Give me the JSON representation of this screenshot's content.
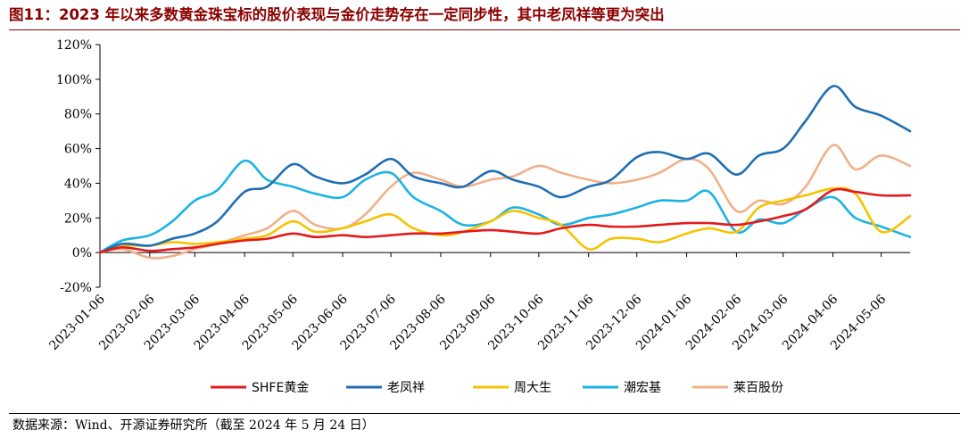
{
  "figure": {
    "title": "图11：2023 年以来多数黄金珠宝标的股价表现与金价走势存在一定同步性，其中老凤祥等更为突出",
    "source": "数据来源：Wind、开源证券研究所（截至 2024 年 5 月 24 日）"
  },
  "chart_data": {
    "type": "line",
    "title": "",
    "xlabel": "",
    "ylabel": "",
    "ylim": [
      -20,
      120
    ],
    "y_ticks": [
      -20,
      0,
      20,
      40,
      60,
      80,
      100,
      120
    ],
    "y_tick_labels": [
      "-20%",
      "0%",
      "20%",
      "40%",
      "60%",
      "80%",
      "100%",
      "120%"
    ],
    "x_tick_labels": [
      "2023-01-06",
      "2023-02-06",
      "2023-03-06",
      "2023-04-06",
      "2023-05-06",
      "2023-06-06",
      "2023-07-06",
      "2023-08-06",
      "2023-09-06",
      "2023-10-06",
      "2023-11-06",
      "2023-12-06",
      "2024-01-06",
      "2024-02-06",
      "2024-03-06",
      "2024-04-06",
      "2024-05-06"
    ],
    "x": [
      "2023-01-06",
      "2023-01-20",
      "2023-02-06",
      "2023-02-20",
      "2023-03-06",
      "2023-03-20",
      "2023-04-06",
      "2023-04-20",
      "2023-05-06",
      "2023-05-20",
      "2023-06-06",
      "2023-06-20",
      "2023-07-06",
      "2023-07-20",
      "2023-08-06",
      "2023-08-20",
      "2023-09-06",
      "2023-09-20",
      "2023-10-06",
      "2023-10-20",
      "2023-11-06",
      "2023-11-20",
      "2023-12-06",
      "2023-12-20",
      "2024-01-06",
      "2024-01-20",
      "2024-02-06",
      "2024-02-20",
      "2024-03-06",
      "2024-03-20",
      "2024-04-06",
      "2024-04-20",
      "2024-05-06",
      "2024-05-24"
    ],
    "legend_position": "bottom",
    "grid": false,
    "series": [
      {
        "name": "SHFE黄金",
        "color": "#e31a1c",
        "values": [
          0,
          3,
          1,
          2,
          3,
          5,
          7,
          8,
          11,
          9,
          10,
          9,
          10,
          11,
          11,
          12,
          13,
          12,
          11,
          14,
          16,
          15,
          15,
          16,
          17,
          17,
          16,
          18,
          21,
          25,
          36,
          35,
          33,
          33
        ]
      },
      {
        "name": "老凤祥",
        "color": "#1f6eb4",
        "values": [
          0,
          5,
          4,
          8,
          11,
          18,
          35,
          38,
          51,
          44,
          40,
          45,
          54,
          44,
          40,
          38,
          47,
          42,
          38,
          32,
          38,
          42,
          55,
          58,
          54,
          57,
          45,
          56,
          60,
          76,
          96,
          84,
          79,
          70
        ]
      },
      {
        "name": "周大生",
        "color": "#f5c300",
        "values": [
          0,
          4,
          4,
          6,
          5,
          6,
          8,
          10,
          18,
          12,
          14,
          18,
          22,
          14,
          10,
          12,
          18,
          24,
          20,
          16,
          2,
          8,
          8,
          6,
          11,
          14,
          12,
          26,
          30,
          33,
          37,
          34,
          12,
          21
        ]
      },
      {
        "name": "潮宏基",
        "color": "#1bb3e3",
        "values": [
          0,
          7,
          10,
          18,
          30,
          36,
          53,
          42,
          38,
          34,
          32,
          42,
          46,
          32,
          24,
          16,
          18,
          26,
          22,
          16,
          20,
          22,
          26,
          30,
          30,
          35,
          12,
          19,
          17,
          25,
          32,
          20,
          15,
          9
        ]
      },
      {
        "name": "莱百股份",
        "color": "#f0b08a",
        "values": [
          0,
          2,
          -3,
          -2,
          2,
          5,
          10,
          14,
          24,
          16,
          14,
          22,
          38,
          46,
          42,
          38,
          42,
          44,
          50,
          46,
          42,
          40,
          42,
          46,
          54,
          48,
          24,
          30,
          28,
          38,
          62,
          48,
          56,
          50
        ]
      }
    ]
  }
}
